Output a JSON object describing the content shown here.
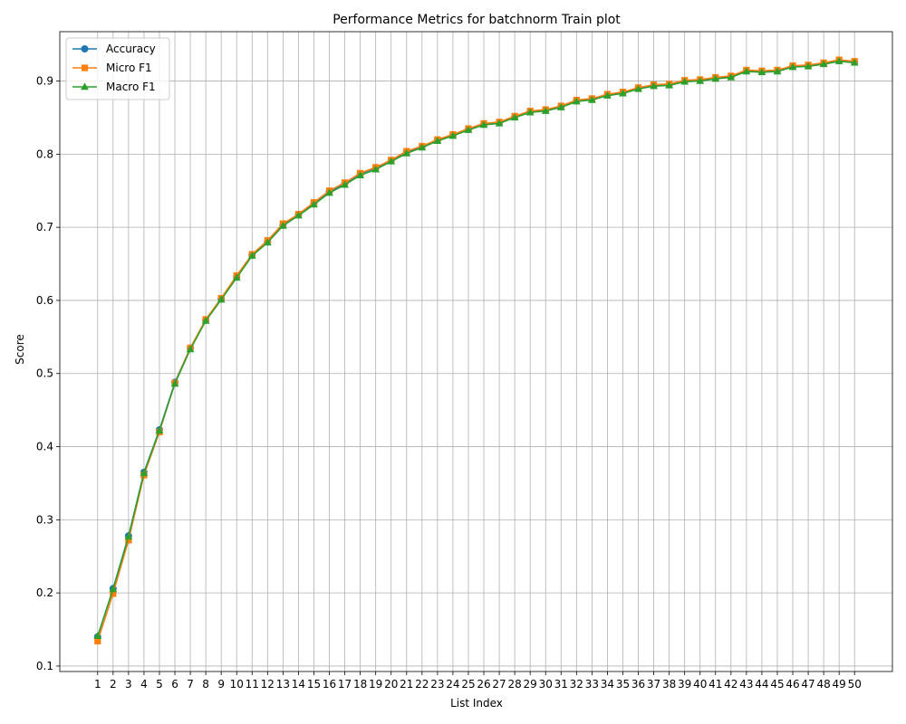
{
  "chart_data": {
    "type": "line",
    "title": "Performance Metrics for batchnorm Train plot",
    "xlabel": "List Index",
    "ylabel": "Score",
    "x": [
      1,
      2,
      3,
      4,
      5,
      6,
      7,
      8,
      9,
      10,
      11,
      12,
      13,
      14,
      15,
      16,
      17,
      18,
      19,
      20,
      21,
      22,
      23,
      24,
      25,
      26,
      27,
      28,
      29,
      30,
      31,
      32,
      33,
      34,
      35,
      36,
      37,
      38,
      39,
      40,
      41,
      42,
      43,
      44,
      45,
      46,
      47,
      48,
      49,
      50
    ],
    "xlim": [
      -1.45,
      52.45
    ],
    "ylim": [
      0.0925,
      0.9675
    ],
    "yticks": [
      0.1,
      0.2,
      0.3,
      0.4,
      0.5,
      0.6,
      0.7,
      0.8,
      0.9
    ],
    "grid": true,
    "legend_position": "top-left",
    "series": [
      {
        "name": "Accuracy",
        "color": "#1f77b4",
        "marker": "circle",
        "values": [
          0.14,
          0.206,
          0.278,
          0.365,
          0.423,
          0.488,
          0.535,
          0.573,
          0.602,
          0.632,
          0.662,
          0.68,
          0.703,
          0.717,
          0.733,
          0.749,
          0.76,
          0.773,
          0.781,
          0.791,
          0.803,
          0.81,
          0.819,
          0.826,
          0.834,
          0.841,
          0.843,
          0.851,
          0.858,
          0.86,
          0.865,
          0.873,
          0.875,
          0.881,
          0.884,
          0.89,
          0.894,
          0.895,
          0.9,
          0.901,
          0.904,
          0.906,
          0.914,
          0.913,
          0.914,
          0.92,
          0.921,
          0.924,
          0.928,
          0.926
        ]
      },
      {
        "name": "Micro F1",
        "color": "#ff7f0e",
        "marker": "square",
        "values": [
          0.134,
          0.199,
          0.272,
          0.361,
          0.42,
          0.487,
          0.535,
          0.574,
          0.603,
          0.634,
          0.663,
          0.682,
          0.705,
          0.718,
          0.734,
          0.75,
          0.761,
          0.774,
          0.782,
          0.792,
          0.804,
          0.811,
          0.82,
          0.827,
          0.835,
          0.842,
          0.844,
          0.852,
          0.859,
          0.861,
          0.866,
          0.874,
          0.876,
          0.882,
          0.885,
          0.891,
          0.895,
          0.896,
          0.901,
          0.902,
          0.905,
          0.907,
          0.915,
          0.914,
          0.915,
          0.921,
          0.922,
          0.925,
          0.929,
          0.927
        ]
      },
      {
        "name": "Macro F1",
        "color": "#2ca02c",
        "marker": "triangle",
        "values": [
          0.141,
          0.205,
          0.277,
          0.364,
          0.422,
          0.486,
          0.533,
          0.572,
          0.601,
          0.631,
          0.661,
          0.679,
          0.702,
          0.716,
          0.731,
          0.747,
          0.758,
          0.771,
          0.779,
          0.79,
          0.801,
          0.809,
          0.818,
          0.825,
          0.833,
          0.84,
          0.842,
          0.85,
          0.857,
          0.859,
          0.864,
          0.872,
          0.874,
          0.88,
          0.883,
          0.889,
          0.893,
          0.894,
          0.899,
          0.9,
          0.903,
          0.905,
          0.913,
          0.912,
          0.913,
          0.919,
          0.92,
          0.923,
          0.927,
          0.925
        ]
      }
    ]
  }
}
